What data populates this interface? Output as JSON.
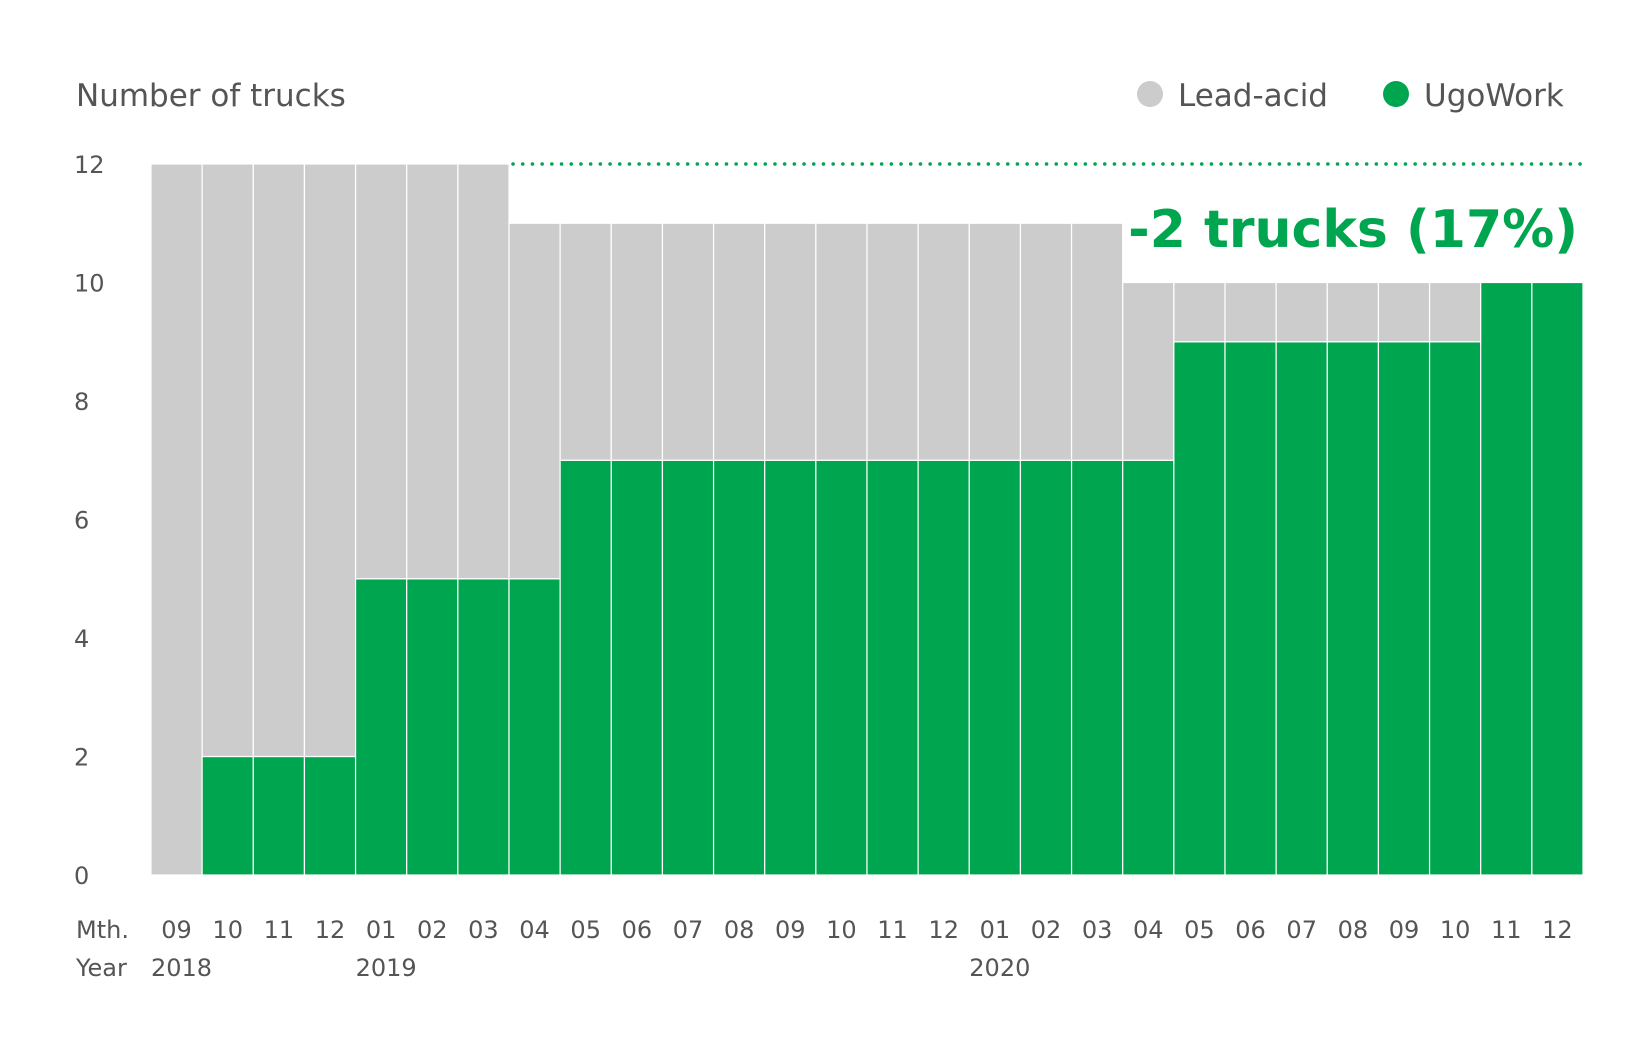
{
  "chart_data": {
    "type": "bar",
    "stacked": true,
    "ylabel": "Number of trucks",
    "ylim": [
      0,
      12
    ],
    "yticks": [
      "0",
      "2",
      "4",
      "6",
      "8",
      "10",
      "12"
    ],
    "row_labels": {
      "month": "Mth.",
      "year": "Year"
    },
    "categories": [
      "09",
      "10",
      "11",
      "12",
      "01",
      "02",
      "03",
      "04",
      "05",
      "06",
      "07",
      "08",
      "09",
      "10",
      "11",
      "12",
      "01",
      "02",
      "03",
      "04",
      "05",
      "06",
      "07",
      "08",
      "09",
      "10",
      "11",
      "12"
    ],
    "years": [
      "2018",
      "",
      "",
      "",
      "2019",
      "",
      "",
      "",
      "",
      "",
      "",
      "",
      "",
      "",
      "",
      "",
      "2020",
      "",
      "",
      "",
      "",
      "",
      "",
      "",
      "",
      "",
      "",
      ""
    ],
    "series": [
      {
        "name": "UgoWork",
        "color": "#00a54f",
        "values": [
          0,
          2,
          2,
          2,
          5,
          5,
          5,
          5,
          7,
          7,
          7,
          7,
          7,
          7,
          7,
          7,
          7,
          7,
          7,
          7,
          9,
          9,
          9,
          9,
          9,
          9,
          10,
          10
        ]
      },
      {
        "name": "Lead-acid",
        "color": "#cccccc",
        "values": [
          12,
          10,
          10,
          10,
          7,
          7,
          7,
          6,
          4,
          4,
          4,
          4,
          4,
          4,
          4,
          4,
          4,
          4,
          4,
          3,
          1,
          1,
          1,
          1,
          1,
          1,
          0,
          0
        ]
      }
    ],
    "reference_line": {
      "value": 12,
      "color": "#00a54f",
      "style": "dotted"
    },
    "annotation": {
      "text": "-2 trucks (17%)",
      "color": "#00a54f"
    },
    "legend": {
      "position": "top-right",
      "order": [
        "Lead-acid",
        "UgoWork"
      ]
    },
    "grid": false,
    "text_color": "#555555"
  }
}
